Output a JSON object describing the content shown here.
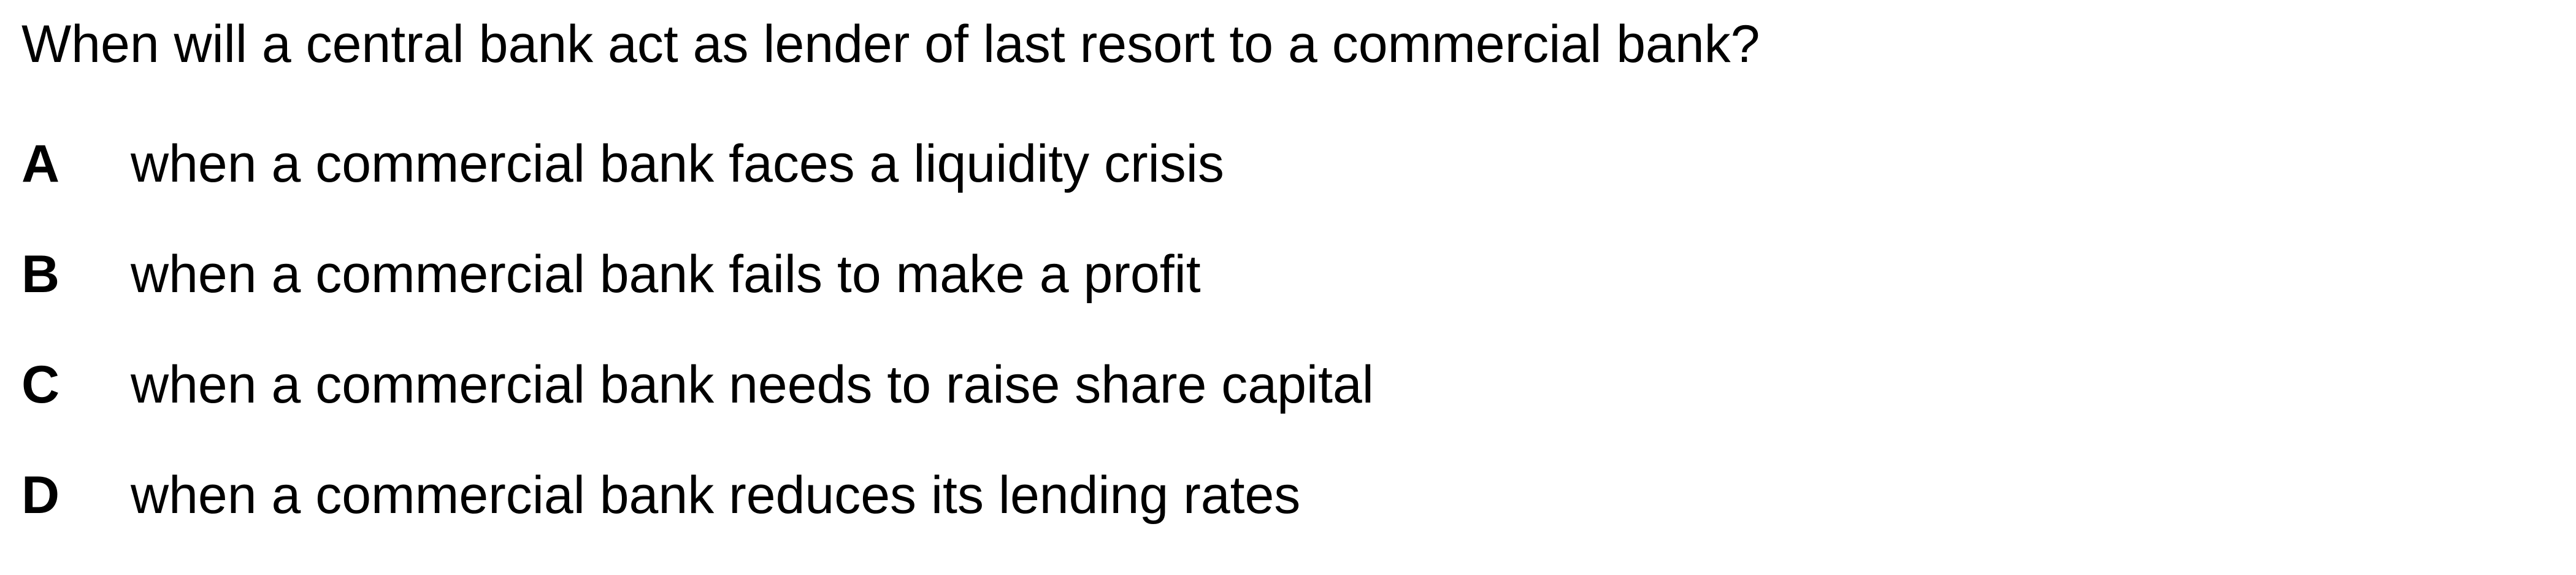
{
  "question": "When will a central bank act as lender of last resort to a commercial bank?",
  "options": [
    {
      "letter": "A",
      "text": "when a commercial bank faces a liquidity crisis"
    },
    {
      "letter": "B",
      "text": "when a commercial bank fails to make a profit"
    },
    {
      "letter": "C",
      "text": "when a commercial bank needs to raise share capital"
    },
    {
      "letter": "D",
      "text": "when a commercial bank reduces its lending rates"
    }
  ]
}
